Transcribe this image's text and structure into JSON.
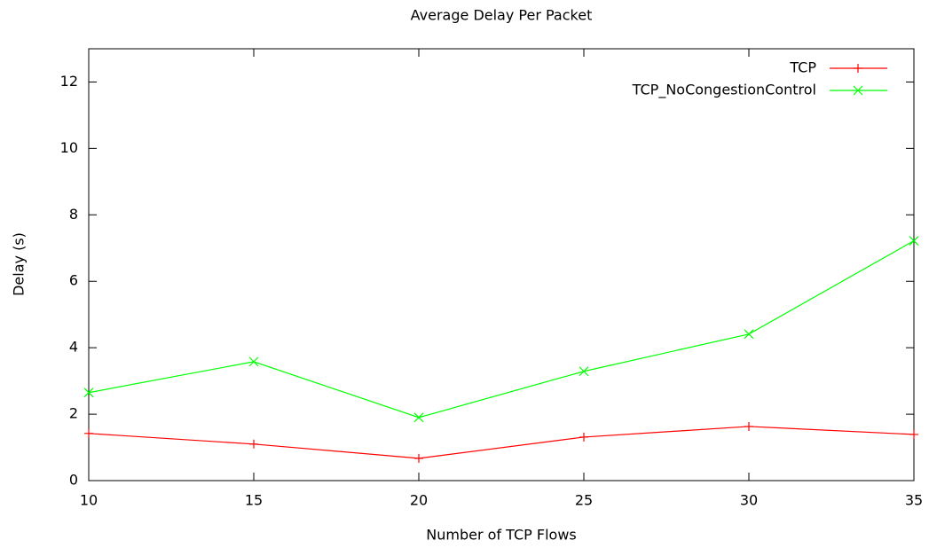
{
  "chart_data": {
    "type": "line",
    "title": "Average Delay Per Packet",
    "xlabel": "Number of TCP Flows",
    "ylabel": "Delay (s)",
    "x": [
      10,
      15,
      20,
      25,
      30,
      35
    ],
    "series": [
      {
        "name": "TCP",
        "color": "#ff0000",
        "marker": "plus",
        "values": [
          1.42,
          1.1,
          0.67,
          1.31,
          1.63,
          1.39
        ]
      },
      {
        "name": "TCP_NoCongestionControl",
        "color": "#00ff00",
        "marker": "cross",
        "values": [
          2.65,
          3.58,
          1.9,
          3.29,
          4.41,
          7.22
        ]
      }
    ],
    "xlim": [
      10,
      35
    ],
    "xticks": [
      10,
      15,
      20,
      25,
      30,
      35
    ],
    "ylim": [
      0,
      13
    ],
    "yticks": [
      0,
      2,
      4,
      6,
      8,
      10,
      12
    ],
    "legend": "top-right",
    "grid": false
  }
}
